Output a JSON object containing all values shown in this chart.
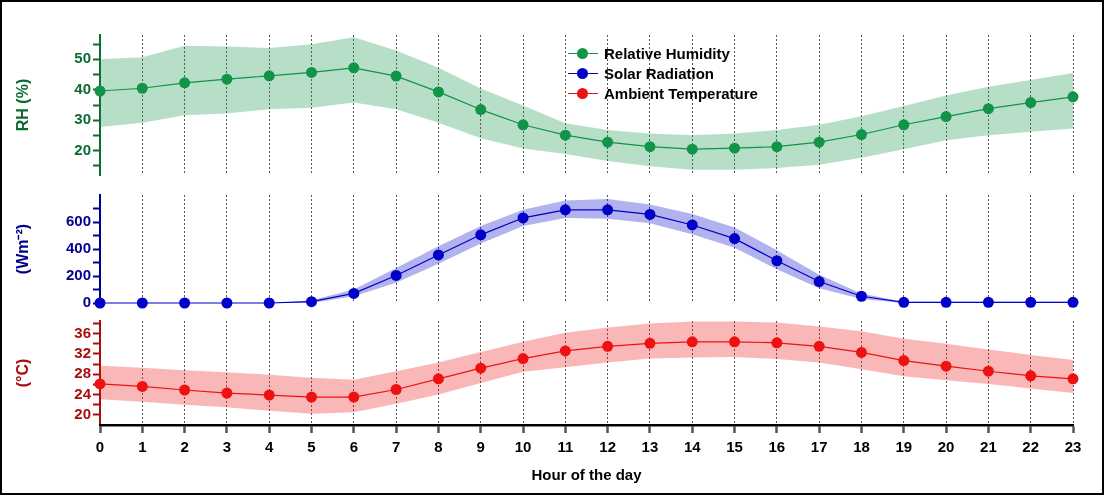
{
  "chart_data": [
    {
      "type": "line",
      "ylabel": "RH (%)",
      "x": [
        0,
        1,
        2,
        3,
        4,
        5,
        6,
        7,
        8,
        9,
        10,
        11,
        12,
        13,
        14,
        15,
        16,
        17,
        18,
        19,
        20,
        21,
        22,
        23
      ],
      "xlim": [
        0,
        23
      ],
      "xticks": [
        0,
        1,
        2,
        3,
        4,
        5,
        6,
        7,
        8,
        9,
        10,
        11,
        12,
        13,
        14,
        15,
        16,
        17,
        18,
        19,
        20,
        21,
        22,
        23
      ],
      "ylim": [
        12,
        58
      ],
      "yticks": [
        {
          "value": 15,
          "label": null
        },
        20,
        {
          "value": 25,
          "label": null
        },
        30,
        {
          "value": 35,
          "label": null
        },
        40,
        {
          "value": 45,
          "label": null
        },
        50,
        {
          "value": 55,
          "label": null
        }
      ],
      "grid": "x",
      "legend": "top",
      "marker": "circle",
      "tick_labels": "y",
      "series": [
        {
          "name": "Relative Humidity",
          "color": "#119447",
          "values": [
            39.6,
            40.5,
            42.3,
            43.5,
            44.6,
            45.7,
            47.2,
            44.5,
            39.3,
            33.5,
            28.5,
            25.1,
            22.8,
            21.3,
            20.5,
            20.8,
            21.3,
            22.8,
            25.3,
            28.5,
            31.2,
            33.8,
            35.8,
            37.7
          ],
          "lower": [
            27.8,
            29.2,
            31.6,
            32.2,
            33.6,
            34.1,
            35.8,
            33.6,
            29.2,
            24.1,
            20.7,
            18.9,
            16.6,
            14.9,
            13.7,
            13.7,
            14.3,
            15.4,
            17.7,
            20.5,
            23.4,
            25.1,
            26.2,
            27.3
          ],
          "upper": [
            50,
            50.7,
            54.5,
            54.2,
            53.7,
            55,
            57.3,
            52.9,
            47.2,
            40.4,
            34.8,
            29,
            26.8,
            25.6,
            25.1,
            25.6,
            26.8,
            28.5,
            31.3,
            34.7,
            38.1,
            41,
            43.2,
            45.5
          ]
        }
      ]
    },
    {
      "type": "line",
      "ylabel": "(Wm⁻²)",
      "x": [
        0,
        1,
        2,
        3,
        4,
        5,
        6,
        7,
        8,
        9,
        10,
        11,
        12,
        13,
        14,
        15,
        16,
        17,
        18,
        19,
        20,
        21,
        22,
        23
      ],
      "xlim": [
        0,
        23
      ],
      "xticks": [
        0,
        1,
        2,
        3,
        4,
        5,
        6,
        7,
        8,
        9,
        10,
        11,
        12,
        13,
        14,
        15,
        16,
        17,
        18,
        19,
        20,
        21,
        22,
        23
      ],
      "ylim": [
        0,
        800
      ],
      "yticks": [
        0,
        {
          "value": 100,
          "label": null
        },
        200,
        {
          "value": 300,
          "label": null
        },
        400,
        {
          "value": 500,
          "label": null
        },
        600,
        {
          "value": 700,
          "label": null
        }
      ],
      "grid": "x",
      "legend": "top",
      "marker": "circle",
      "tick_labels": "y",
      "series": [
        {
          "name": "Solar Radiation",
          "color": "#0000c8",
          "values": [
            0,
            0,
            0,
            0,
            0,
            10,
            71,
            204,
            356,
            505,
            630,
            690,
            690,
            656,
            578,
            477,
            313,
            159,
            50,
            5,
            5,
            5,
            5,
            5
          ],
          "lower": [
            0,
            0,
            0,
            0,
            0,
            0,
            50,
            150,
            290,
            440,
            570,
            630,
            625,
            590,
            510,
            410,
            250,
            110,
            30,
            0,
            0,
            0,
            0,
            0
          ],
          "upper": [
            0,
            0,
            0,
            0,
            0,
            20,
            100,
            260,
            420,
            570,
            690,
            760,
            770,
            730,
            660,
            560,
            390,
            210,
            70,
            10,
            10,
            10,
            10,
            10
          ]
        }
      ]
    },
    {
      "type": "line",
      "xlabel": "Hour of the day",
      "ylabel": "(°C)",
      "x": [
        0,
        1,
        2,
        3,
        4,
        5,
        6,
        7,
        8,
        9,
        10,
        11,
        12,
        13,
        14,
        15,
        16,
        17,
        18,
        19,
        20,
        21,
        22,
        23
      ],
      "xlim": [
        0,
        23
      ],
      "xticks": [
        0,
        1,
        2,
        3,
        4,
        5,
        6,
        7,
        8,
        9,
        10,
        11,
        12,
        13,
        14,
        15,
        16,
        17,
        18,
        19,
        20,
        21,
        22,
        23
      ],
      "ylim": [
        18,
        38.5
      ],
      "yticks": [
        20,
        {
          "value": 22,
          "label": null
        },
        24,
        {
          "value": 26,
          "label": null
        },
        28,
        {
          "value": 30,
          "label": null
        },
        32,
        {
          "value": 34,
          "label": null
        },
        36,
        {
          "value": 38,
          "label": null
        }
      ],
      "grid": "x",
      "legend": "top",
      "marker": "circle",
      "series": [
        {
          "name": "Ambient Temperature",
          "color": "#ee1111",
          "values": [
            26.1,
            25.6,
            24.9,
            24.3,
            23.9,
            23.5,
            23.5,
            25,
            27.1,
            29.2,
            31.1,
            32.6,
            33.5,
            34.1,
            34.4,
            34.4,
            34.2,
            33.5,
            32.3,
            30.7,
            29.6,
            28.6,
            27.7,
            27.1
          ],
          "lower": [
            23.1,
            22.6,
            22,
            21.5,
            20.8,
            20.2,
            20.5,
            22.2,
            24,
            26.3,
            28.5,
            29.4,
            30.3,
            31.1,
            31.3,
            31.4,
            31,
            30.3,
            29,
            27.6,
            26.8,
            26.1,
            25.2,
            24.3
          ],
          "upper": [
            29.7,
            29.3,
            28.8,
            28.4,
            27.9,
            27.3,
            26.9,
            28.6,
            30.3,
            32.4,
            34.4,
            36.2,
            37.2,
            38,
            38.4,
            38.4,
            38.2,
            37.4,
            36.5,
            35,
            34,
            32.9,
            31.8,
            30.8
          ]
        }
      ]
    }
  ]
}
